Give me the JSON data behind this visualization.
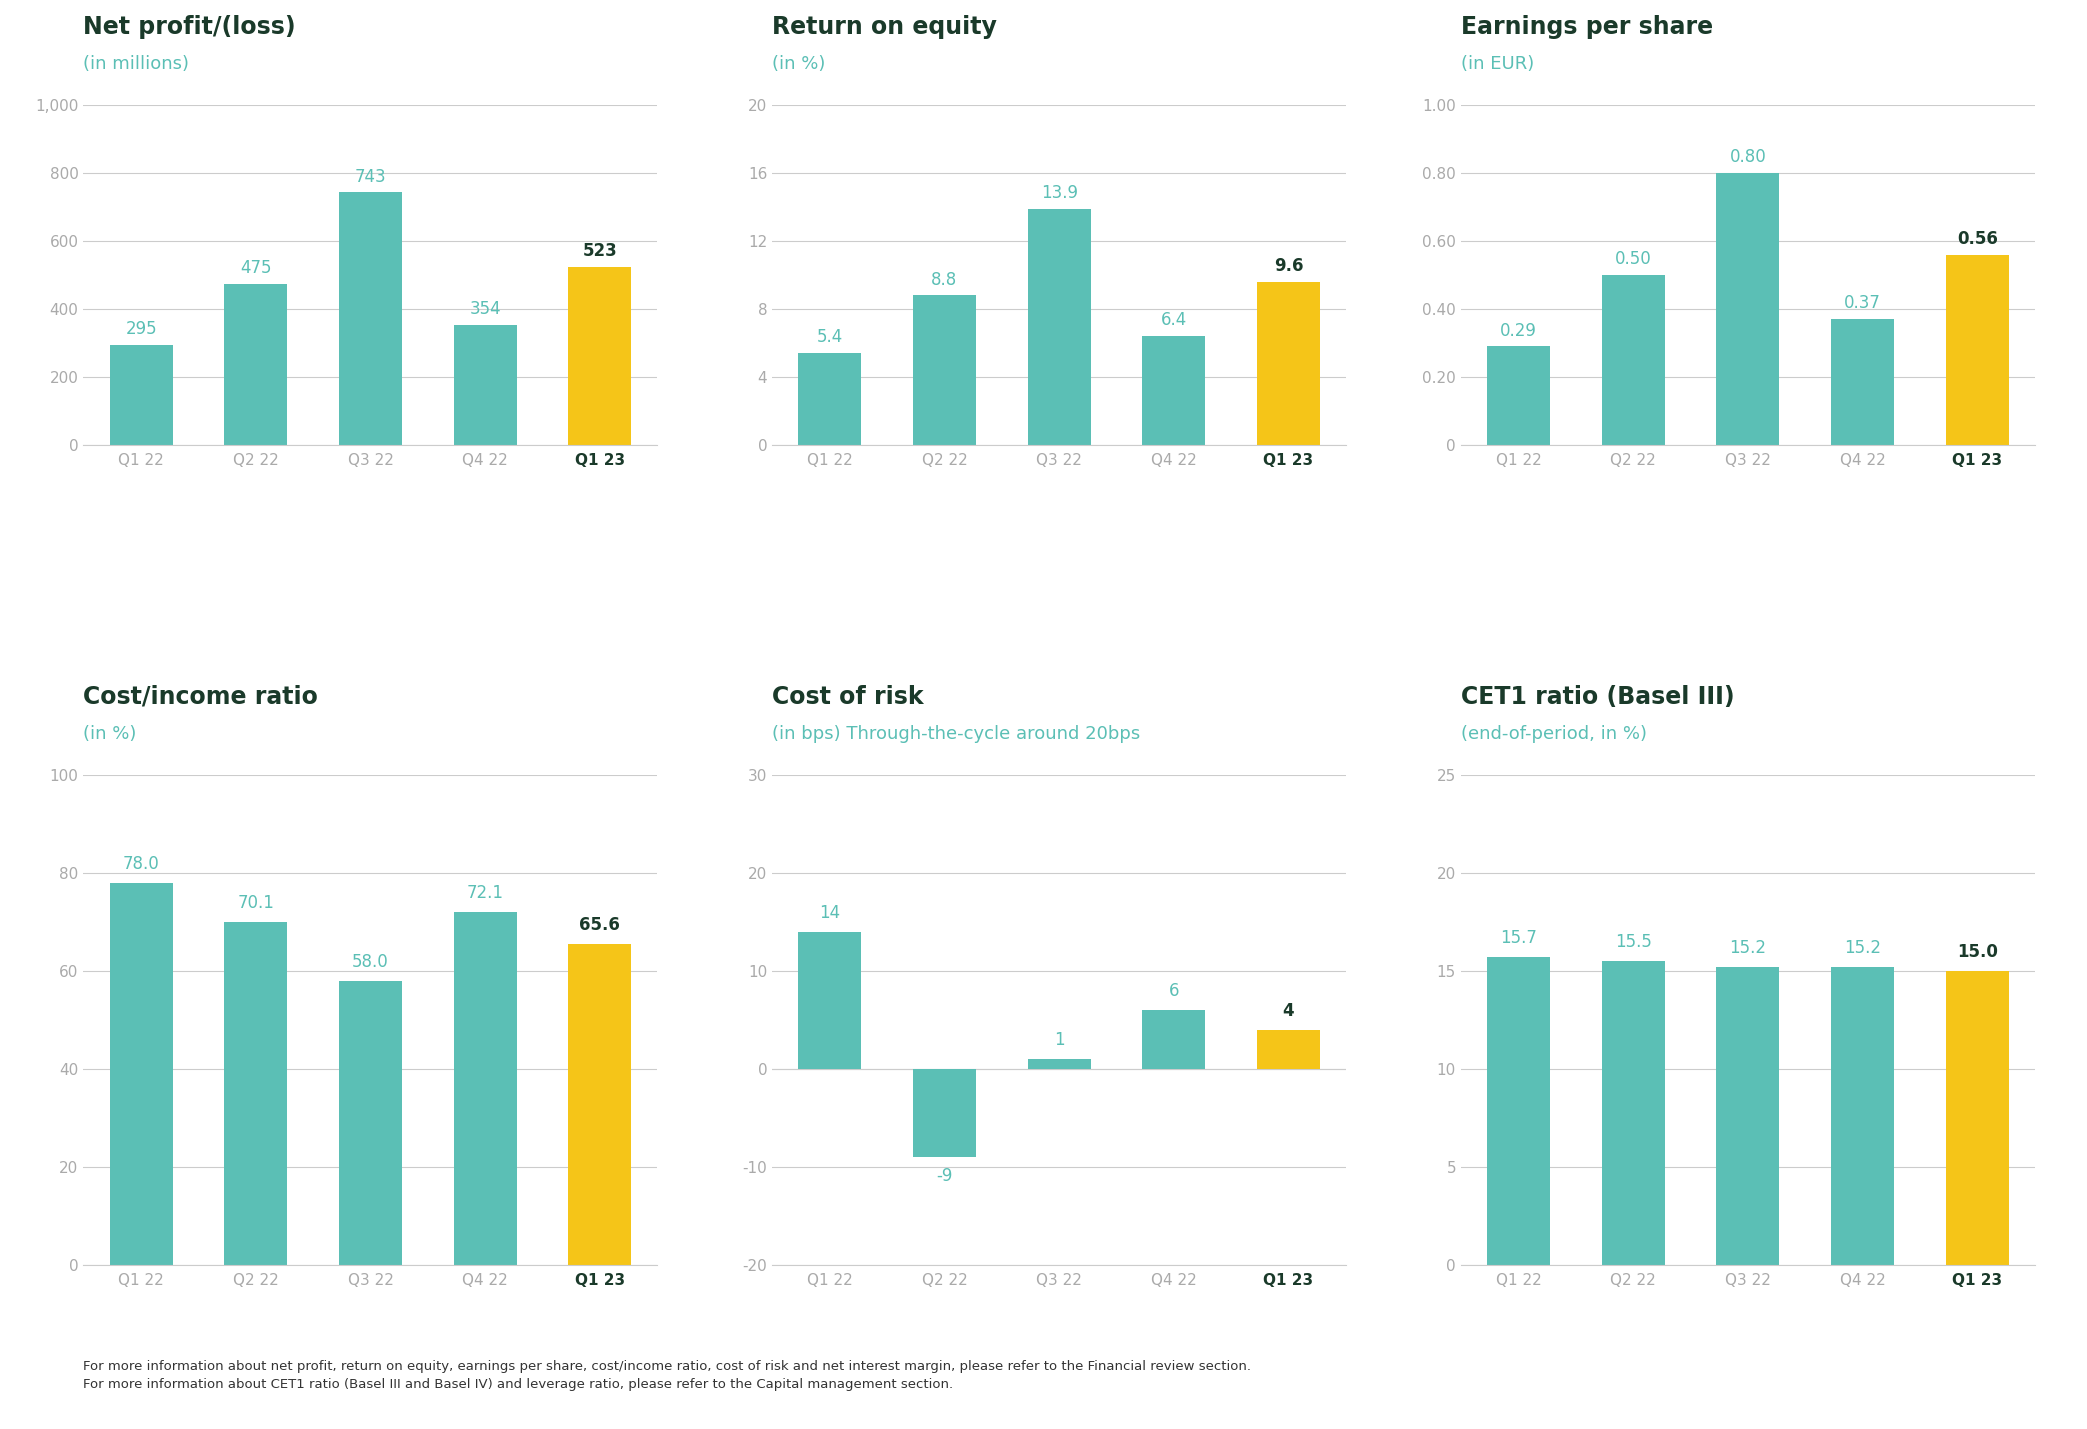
{
  "charts": [
    {
      "title": "Net profit/(loss)",
      "subtitle": "(in millions)",
      "categories": [
        "Q1 22",
        "Q2 22",
        "Q3 22",
        "Q4 22",
        "Q1 23"
      ],
      "values": [
        295,
        475,
        743,
        354,
        523
      ],
      "labels": [
        "295",
        "475",
        "743",
        "354",
        "523"
      ],
      "ylim": [
        0,
        1000
      ],
      "yticks": [
        0,
        200,
        400,
        600,
        800,
        1000
      ],
      "ytick_labels": [
        "0",
        "200",
        "400",
        "600",
        "800",
        "1,000"
      ],
      "bar_colors": [
        "#5bbfb5",
        "#5bbfb5",
        "#5bbfb5",
        "#5bbfb5",
        "#f5c518"
      ]
    },
    {
      "title": "Return on equity",
      "subtitle": "(in %)",
      "categories": [
        "Q1 22",
        "Q2 22",
        "Q3 22",
        "Q4 22",
        "Q1 23"
      ],
      "values": [
        5.4,
        8.8,
        13.9,
        6.4,
        9.6
      ],
      "labels": [
        "5.4",
        "8.8",
        "13.9",
        "6.4",
        "9.6"
      ],
      "ylim": [
        0,
        20
      ],
      "yticks": [
        0,
        4,
        8,
        12,
        16,
        20
      ],
      "ytick_labels": [
        "0",
        "4",
        "8",
        "12",
        "16",
        "20"
      ],
      "bar_colors": [
        "#5bbfb5",
        "#5bbfb5",
        "#5bbfb5",
        "#5bbfb5",
        "#f5c518"
      ]
    },
    {
      "title": "Earnings per share",
      "subtitle": "(in EUR)",
      "categories": [
        "Q1 22",
        "Q2 22",
        "Q3 22",
        "Q4 22",
        "Q1 23"
      ],
      "values": [
        0.29,
        0.5,
        0.8,
        0.37,
        0.56
      ],
      "labels": [
        "0.29",
        "0.50",
        "0.80",
        "0.37",
        "0.56"
      ],
      "ylim": [
        0,
        1.0
      ],
      "yticks": [
        0,
        0.2,
        0.4,
        0.6,
        0.8,
        1.0
      ],
      "ytick_labels": [
        "0",
        "0.20",
        "0.40",
        "0.60",
        "0.80",
        "1.00"
      ],
      "bar_colors": [
        "#5bbfb5",
        "#5bbfb5",
        "#5bbfb5",
        "#5bbfb5",
        "#f5c518"
      ]
    },
    {
      "title": "Cost/income ratio",
      "subtitle": "(in %)",
      "categories": [
        "Q1 22",
        "Q2 22",
        "Q3 22",
        "Q4 22",
        "Q1 23"
      ],
      "values": [
        78.0,
        70.1,
        58.0,
        72.1,
        65.6
      ],
      "labels": [
        "78.0",
        "70.1",
        "58.0",
        "72.1",
        "65.6"
      ],
      "ylim": [
        0,
        100
      ],
      "yticks": [
        0,
        20,
        40,
        60,
        80,
        100
      ],
      "ytick_labels": [
        "0",
        "20",
        "40",
        "60",
        "80",
        "100"
      ],
      "bar_colors": [
        "#5bbfb5",
        "#5bbfb5",
        "#5bbfb5",
        "#5bbfb5",
        "#f5c518"
      ]
    },
    {
      "title": "Cost of risk",
      "subtitle": "(in bps) Through-the-cycle around 20bps",
      "categories": [
        "Q1 22",
        "Q2 22",
        "Q3 22",
        "Q4 22",
        "Q1 23"
      ],
      "values": [
        14,
        -9,
        1,
        6,
        4
      ],
      "labels": [
        "14",
        "-9",
        "1",
        "6",
        "4"
      ],
      "ylim": [
        -20,
        30
      ],
      "yticks": [
        -20,
        -10,
        0,
        10,
        20,
        30
      ],
      "ytick_labels": [
        "-20",
        "-10",
        "0",
        "10",
        "20",
        "30"
      ],
      "bar_colors": [
        "#5bbfb5",
        "#5bbfb5",
        "#5bbfb5",
        "#5bbfb5",
        "#f5c518"
      ]
    },
    {
      "title": "CET1 ratio (Basel III)",
      "subtitle": "(end-of-period, in %)",
      "categories": [
        "Q1 22",
        "Q2 22",
        "Q3 22",
        "Q4 22",
        "Q1 23"
      ],
      "values": [
        15.7,
        15.5,
        15.2,
        15.2,
        15.0
      ],
      "labels": [
        "15.7",
        "15.5",
        "15.2",
        "15.2",
        "15.0"
      ],
      "ylim": [
        0,
        25
      ],
      "yticks": [
        0,
        5,
        10,
        15,
        20,
        25
      ],
      "ytick_labels": [
        "0",
        "5",
        "10",
        "15",
        "20",
        "25"
      ],
      "bar_colors": [
        "#5bbfb5",
        "#5bbfb5",
        "#5bbfb5",
        "#5bbfb5",
        "#f5c518"
      ]
    }
  ],
  "footer_text": "For more information about net profit, return on equity, earnings per share, cost/income ratio, cost of risk and net interest margin, please refer to the Financial review section.\nFor more information about CET1 ratio (Basel III and Basel IV) and leverage ratio, please refer to the Capital management section.",
  "title_color": "#1a3a2a",
  "subtitle_color": "#5bbfb5",
  "tick_color": "#aaaaaa",
  "grid_color": "#cccccc",
  "label_color_regular": "#5bbfb5",
  "label_color_last": "#1a3a2a",
  "bg_color": "#ffffff"
}
